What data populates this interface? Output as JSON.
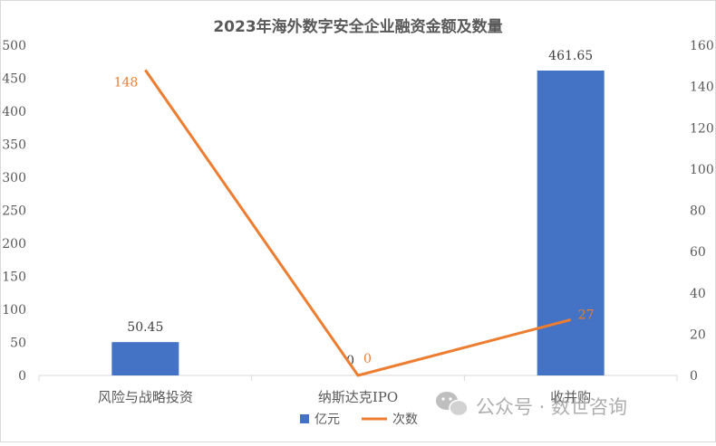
{
  "chart_data": {
    "type": "bar",
    "title": "2023年海外数字安全企业融资金额及数量",
    "categories": [
      "风险与战略投资",
      "纳斯达克IPO",
      "收并购"
    ],
    "series": [
      {
        "name": "亿元",
        "type": "bar",
        "axis": "left",
        "values": [
          50.45,
          0,
          461.65
        ],
        "labels": [
          "50.45",
          "0",
          "461.65"
        ]
      },
      {
        "name": "次数",
        "type": "line",
        "axis": "right",
        "values": [
          148,
          0,
          27
        ],
        "labels": [
          "148",
          "0",
          "27"
        ]
      }
    ],
    "y_left": {
      "min": 0,
      "max": 500,
      "ticks": [
        "0",
        "50",
        "100",
        "150",
        "200",
        "250",
        "300",
        "350",
        "400",
        "450",
        "500"
      ]
    },
    "y_right": {
      "min": 0,
      "max": 160,
      "ticks": [
        "0",
        "20",
        "40",
        "60",
        "80",
        "100",
        "120",
        "140",
        "160"
      ]
    },
    "grid": false,
    "legend_position": "bottom",
    "colors": {
      "bar": "#4472C4",
      "line": "#ED7D31",
      "axis_text": "#595959",
      "axis_line": "#D9D9D9"
    }
  },
  "watermark": {
    "text": "公众号 · 数世咨询",
    "icon": "wechat-icon"
  }
}
